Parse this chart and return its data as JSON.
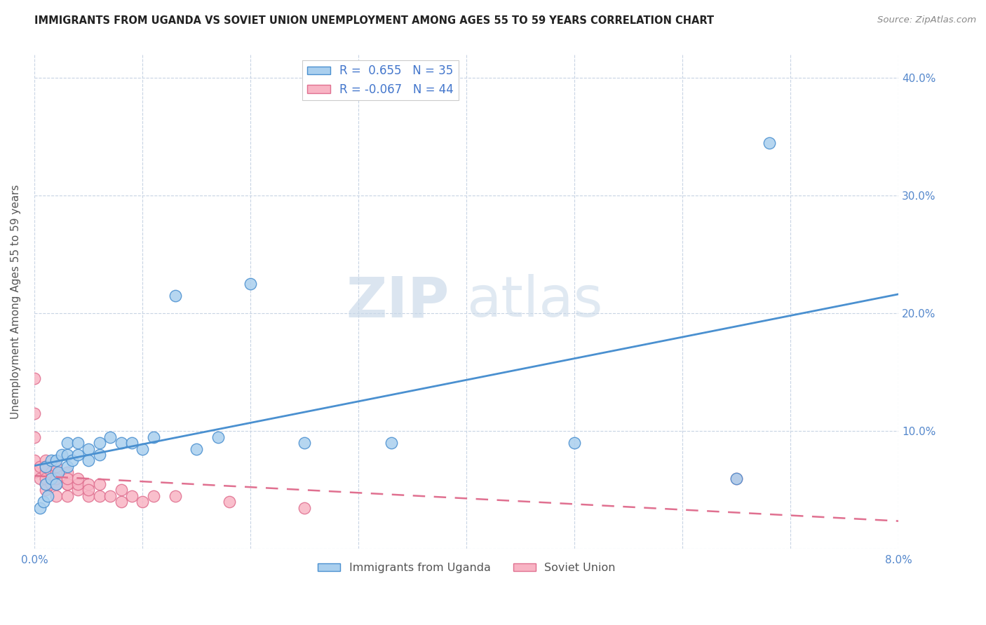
{
  "title": "IMMIGRANTS FROM UGANDA VS SOVIET UNION UNEMPLOYMENT AMONG AGES 55 TO 59 YEARS CORRELATION CHART",
  "source": "Source: ZipAtlas.com",
  "ylabel": "Unemployment Among Ages 55 to 59 years",
  "xlim": [
    0.0,
    0.08
  ],
  "ylim": [
    0.0,
    0.42
  ],
  "xticks": [
    0.0,
    0.01,
    0.02,
    0.03,
    0.04,
    0.05,
    0.06,
    0.07,
    0.08
  ],
  "xticklabels": [
    "0.0%",
    "",
    "",
    "",
    "",
    "",
    "",
    "",
    "8.0%"
  ],
  "yticks": [
    0.0,
    0.1,
    0.2,
    0.3,
    0.4
  ],
  "yticklabels": [
    "",
    "10.0%",
    "20.0%",
    "30.0%",
    "40.0%"
  ],
  "legend_r_uganda": "0.655",
  "legend_n_uganda": "35",
  "legend_r_soviet": "-0.067",
  "legend_n_soviet": "44",
  "uganda_color": "#aacfee",
  "soviet_color": "#f8b4c4",
  "uganda_line_color": "#4a90d0",
  "soviet_line_color": "#e07090",
  "watermark_zip": "ZIP",
  "watermark_atlas": "atlas",
  "uganda_x": [
    0.0005,
    0.0008,
    0.001,
    0.001,
    0.0012,
    0.0015,
    0.0015,
    0.002,
    0.002,
    0.0022,
    0.0025,
    0.003,
    0.003,
    0.003,
    0.0035,
    0.004,
    0.004,
    0.005,
    0.005,
    0.006,
    0.006,
    0.007,
    0.008,
    0.009,
    0.01,
    0.011,
    0.013,
    0.015,
    0.017,
    0.02,
    0.025,
    0.033,
    0.05,
    0.065,
    0.068
  ],
  "uganda_y": [
    0.035,
    0.04,
    0.055,
    0.07,
    0.045,
    0.06,
    0.075,
    0.055,
    0.075,
    0.065,
    0.08,
    0.07,
    0.08,
    0.09,
    0.075,
    0.08,
    0.09,
    0.085,
    0.075,
    0.08,
    0.09,
    0.095,
    0.09,
    0.09,
    0.085,
    0.095,
    0.215,
    0.085,
    0.095,
    0.225,
    0.09,
    0.09,
    0.09,
    0.06,
    0.345
  ],
  "soviet_x": [
    0.0,
    0.0,
    0.0,
    0.0,
    0.0,
    0.0005,
    0.0005,
    0.001,
    0.001,
    0.001,
    0.001,
    0.001,
    0.001,
    0.0015,
    0.0015,
    0.002,
    0.002,
    0.002,
    0.002,
    0.002,
    0.002,
    0.003,
    0.003,
    0.003,
    0.003,
    0.003,
    0.004,
    0.004,
    0.004,
    0.005,
    0.005,
    0.005,
    0.006,
    0.006,
    0.007,
    0.008,
    0.008,
    0.009,
    0.01,
    0.011,
    0.013,
    0.018,
    0.025,
    0.065
  ],
  "soviet_y": [
    0.145,
    0.115,
    0.095,
    0.075,
    0.065,
    0.07,
    0.06,
    0.065,
    0.055,
    0.075,
    0.05,
    0.06,
    0.07,
    0.065,
    0.055,
    0.055,
    0.065,
    0.07,
    0.055,
    0.06,
    0.045,
    0.055,
    0.065,
    0.045,
    0.055,
    0.06,
    0.05,
    0.055,
    0.06,
    0.045,
    0.055,
    0.05,
    0.045,
    0.055,
    0.045,
    0.05,
    0.04,
    0.045,
    0.04,
    0.045,
    0.045,
    0.04,
    0.035,
    0.06
  ],
  "background_color": "#ffffff",
  "grid_color": "#c8d4e4",
  "tick_label_color": "#5588cc",
  "axis_label_color": "#555555"
}
